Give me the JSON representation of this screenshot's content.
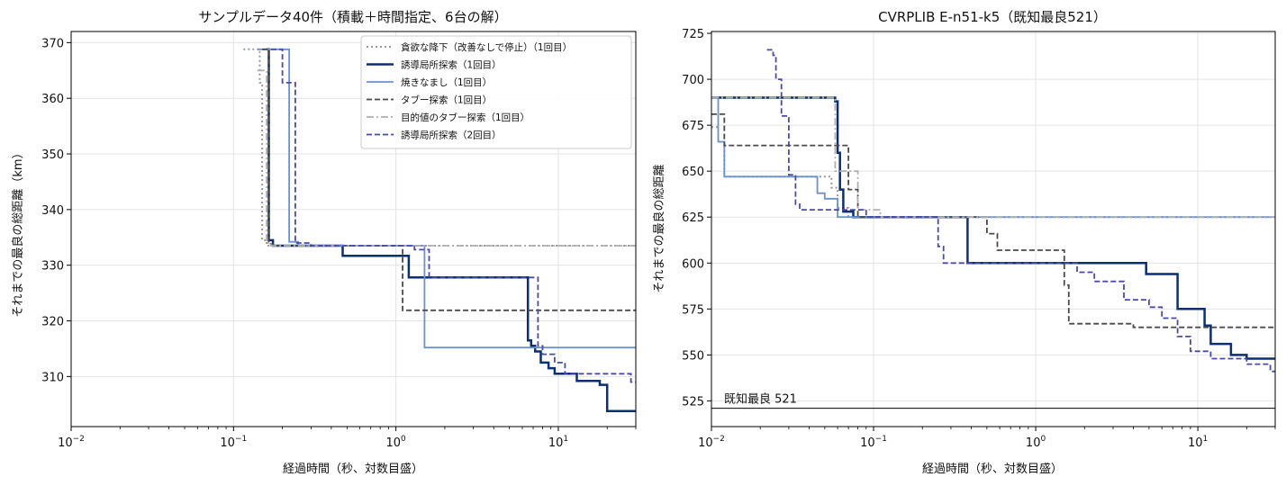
{
  "charts": [
    {
      "type": "line",
      "title": "サンプルデータ40件（積載＋時間指定、6台の解）",
      "xlabel": "経過時間（秒、対数目盛）",
      "ylabel": "それまでの最良の総距離（km）",
      "xscale": "log",
      "xlim": [
        0.01,
        30
      ],
      "ylim": [
        301,
        372
      ],
      "xticks": [
        0.01,
        0.1,
        1,
        10
      ],
      "xtick_labels": [
        [
          "10",
          "−2"
        ],
        [
          "10",
          "−1"
        ],
        [
          "10",
          "0"
        ],
        [
          "10",
          "1"
        ]
      ],
      "yticks": [
        310,
        320,
        330,
        340,
        350,
        360,
        370
      ],
      "grid": true,
      "legend": "top-right",
      "series": [
        {
          "name": "貪欲な降下（改善なしで停止）（1回目）",
          "color": "#999999",
          "style": "dotted",
          "width": 2,
          "points": [
            [
              0.115,
              368.8
            ],
            [
              0.145,
              368.8
            ],
            [
              0.145,
              362.8
            ],
            [
              0.15,
              362.8
            ],
            [
              0.15,
              334.5
            ],
            [
              0.16,
              334.5
            ],
            [
              0.16,
              333.5
            ],
            [
              30,
              333.5
            ]
          ]
        },
        {
          "name": "誘導局所探索（1回目）",
          "color": "#0b2f70",
          "style": "solid",
          "width": 2.5,
          "points": [
            [
              0.16,
              368.8
            ],
            [
              0.165,
              368.8
            ],
            [
              0.165,
              334.5
            ],
            [
              0.175,
              334.5
            ],
            [
              0.175,
              333.5
            ],
            [
              0.47,
              333.5
            ],
            [
              0.47,
              331.7
            ],
            [
              1.2,
              331.7
            ],
            [
              1.2,
              327.8
            ],
            [
              6.5,
              327.8
            ],
            [
              6.5,
              316.5
            ],
            [
              6.8,
              316.5
            ],
            [
              6.8,
              315.5
            ],
            [
              7.2,
              315.5
            ],
            [
              7.2,
              314.5
            ],
            [
              7.8,
              314.5
            ],
            [
              7.8,
              312.5
            ],
            [
              8.7,
              312.5
            ],
            [
              8.7,
              311.5
            ],
            [
              9.5,
              311.5
            ],
            [
              9.5,
              310.5
            ],
            [
              13,
              310.5
            ],
            [
              13,
              309.2
            ],
            [
              18,
              309.2
            ],
            [
              18,
              308.5
            ],
            [
              20,
              308.5
            ],
            [
              20,
              303.8
            ],
            [
              30,
              303.8
            ]
          ]
        },
        {
          "name": "焼きなまし（1回目）",
          "color": "#6a93cd",
          "style": "solid",
          "width": 1.8,
          "points": [
            [
              0.14,
              368.8
            ],
            [
              0.22,
              368.8
            ],
            [
              0.22,
              334.2
            ],
            [
              0.25,
              334.2
            ],
            [
              0.25,
              333.5
            ],
            [
              1.5,
              333.5
            ],
            [
              1.5,
              315.2
            ],
            [
              30,
              315.2
            ]
          ]
        },
        {
          "name": "タブー探索（1回目）",
          "color": "#4a4a4a",
          "style": "dashed",
          "width": 1.8,
          "points": [
            [
              0.15,
              368.8
            ],
            [
              0.165,
              368.8
            ],
            [
              0.165,
              333.8
            ],
            [
              0.175,
              333.8
            ],
            [
              0.175,
              333.5
            ],
            [
              1.1,
              333.5
            ],
            [
              1.1,
              321.9
            ],
            [
              30,
              321.9
            ]
          ]
        },
        {
          "name": "目的値のタブー探索（1回目）",
          "color": "#b0b0b0",
          "style": "dashdot",
          "width": 1.8,
          "points": [
            [
              0.14,
              365
            ],
            [
              0.16,
              365
            ],
            [
              0.16,
              334
            ],
            [
              0.17,
              334
            ],
            [
              0.17,
              333.5
            ],
            [
              30,
              333.5
            ]
          ]
        },
        {
          "name": "誘導局所探索（2回目）",
          "color": "#4a4aa8",
          "style": "dashed",
          "width": 1.8,
          "points": [
            [
              0.17,
              368.8
            ],
            [
              0.2,
              368.8
            ],
            [
              0.2,
              362.8
            ],
            [
              0.24,
              362.8
            ],
            [
              0.24,
              334
            ],
            [
              0.3,
              334
            ],
            [
              0.3,
              333.5
            ],
            [
              1.3,
              333.5
            ],
            [
              1.3,
              332.8
            ],
            [
              1.6,
              332.8
            ],
            [
              1.6,
              327.8
            ],
            [
              7.5,
              327.8
            ],
            [
              7.5,
              315.5
            ],
            [
              8,
              315.5
            ],
            [
              8,
              314
            ],
            [
              9.5,
              314
            ],
            [
              9.5,
              312.5
            ],
            [
              11,
              312.5
            ],
            [
              11,
              310.5
            ],
            [
              28,
              310.5
            ],
            [
              28,
              309
            ],
            [
              30,
              309
            ]
          ]
        }
      ]
    },
    {
      "type": "line",
      "title": "CVRPLIB E-n51-k5（既知最良521）",
      "xlabel": "経過時間（秒、対数目盛）",
      "ylabel": "それまでの最良の総距離",
      "xscale": "log",
      "xlim": [
        0.01,
        30
      ],
      "ylim": [
        511,
        726
      ],
      "xticks": [
        0.01,
        0.1,
        1,
        10
      ],
      "xtick_labels": [
        [
          "10",
          "−2"
        ],
        [
          "10",
          "−1"
        ],
        [
          "10",
          "0"
        ],
        [
          "10",
          "1"
        ]
      ],
      "yticks": [
        525,
        550,
        575,
        600,
        625,
        650,
        675,
        700,
        725
      ],
      "grid": true,
      "reference": {
        "value": 521,
        "label": "既知最良 521",
        "color": "#000000"
      },
      "series": [
        {
          "name": "貪欲な降下（改善なしで停止）（1回目）",
          "color": "#999999",
          "style": "dotted",
          "width": 2,
          "points": [
            [
              0.01,
              674
            ],
            [
              0.011,
              674
            ],
            [
              0.011,
              666
            ],
            [
              0.012,
              666
            ],
            [
              0.012,
              647
            ],
            [
              0.055,
              647
            ],
            [
              0.055,
              641
            ],
            [
              0.06,
              641
            ],
            [
              0.06,
              630
            ],
            [
              0.07,
              630
            ],
            [
              0.07,
              625
            ],
            [
              30,
              625
            ]
          ]
        },
        {
          "name": "誘導局所探索（1回目）",
          "color": "#0b2f70",
          "style": "solid",
          "width": 2.5,
          "points": [
            [
              0.01,
              690
            ],
            [
              0.058,
              690
            ],
            [
              0.058,
              688
            ],
            [
              0.06,
              688
            ],
            [
              0.06,
              660
            ],
            [
              0.062,
              660
            ],
            [
              0.062,
              640
            ],
            [
              0.065,
              640
            ],
            [
              0.065,
              628
            ],
            [
              0.075,
              628
            ],
            [
              0.075,
              625
            ],
            [
              0.38,
              625
            ],
            [
              0.38,
              600
            ],
            [
              4.8,
              600
            ],
            [
              4.8,
              594
            ],
            [
              7.5,
              594
            ],
            [
              7.5,
              575
            ],
            [
              11,
              575
            ],
            [
              11,
              566
            ],
            [
              12,
              566
            ],
            [
              12,
              556
            ],
            [
              16,
              556
            ],
            [
              16,
              550
            ],
            [
              20,
              550
            ],
            [
              20,
              548
            ],
            [
              30,
              548
            ]
          ]
        },
        {
          "name": "焼きなまし（1回目）",
          "color": "#6a93cd",
          "style": "solid",
          "width": 1.8,
          "points": [
            [
              0.01,
              690
            ],
            [
              0.011,
              690
            ],
            [
              0.011,
              666
            ],
            [
              0.012,
              666
            ],
            [
              0.012,
              647
            ],
            [
              0.045,
              647
            ],
            [
              0.045,
              638
            ],
            [
              0.05,
              638
            ],
            [
              0.05,
              635
            ],
            [
              0.06,
              635
            ],
            [
              0.06,
              625
            ],
            [
              30,
              625
            ]
          ]
        },
        {
          "name": "タブー探索（1回目）",
          "color": "#4a4a4a",
          "style": "dashed",
          "width": 1.8,
          "points": [
            [
              0.01,
              681
            ],
            [
              0.012,
              681
            ],
            [
              0.012,
              664
            ],
            [
              0.07,
              664
            ],
            [
              0.07,
              640
            ],
            [
              0.08,
              640
            ],
            [
              0.08,
              625
            ],
            [
              0.5,
              625
            ],
            [
              0.5,
              616
            ],
            [
              0.58,
              616
            ],
            [
              0.58,
              607
            ],
            [
              1.5,
              607
            ],
            [
              1.5,
              588
            ],
            [
              1.6,
              588
            ],
            [
              1.6,
              567
            ],
            [
              4,
              567
            ],
            [
              4,
              565
            ],
            [
              30,
              565
            ]
          ]
        },
        {
          "name": "目的値のタブー探索（1回目）",
          "color": "#b0b0b0",
          "style": "dashdot",
          "width": 1.8,
          "points": [
            [
              0.01,
              690
            ],
            [
              0.058,
              690
            ],
            [
              0.058,
              650
            ],
            [
              0.08,
              650
            ],
            [
              0.08,
              629
            ],
            [
              0.11,
              629
            ],
            [
              0.11,
              625
            ],
            [
              30,
              625
            ]
          ]
        },
        {
          "name": "誘導局所探索（2回目）",
          "color": "#4a4aa8",
          "style": "dashed",
          "width": 1.8,
          "points": [
            [
              0.022,
              716
            ],
            [
              0.024,
              716
            ],
            [
              0.024,
              713
            ],
            [
              0.025,
              713
            ],
            [
              0.025,
              700
            ],
            [
              0.027,
              700
            ],
            [
              0.027,
              680
            ],
            [
              0.03,
              680
            ],
            [
              0.03,
              648
            ],
            [
              0.033,
              648
            ],
            [
              0.033,
              632
            ],
            [
              0.035,
              632
            ],
            [
              0.035,
              629
            ],
            [
              0.09,
              629
            ],
            [
              0.09,
              625
            ],
            [
              0.25,
              625
            ],
            [
              0.25,
              609
            ],
            [
              0.27,
              609
            ],
            [
              0.27,
              600
            ],
            [
              1.8,
              600
            ],
            [
              1.8,
              595
            ],
            [
              2.3,
              595
            ],
            [
              2.3,
              590
            ],
            [
              3.5,
              590
            ],
            [
              3.5,
              580
            ],
            [
              5,
              580
            ],
            [
              5,
              576
            ],
            [
              6,
              576
            ],
            [
              6,
              570
            ],
            [
              7.5,
              570
            ],
            [
              7.5,
              560
            ],
            [
              9,
              560
            ],
            [
              9,
              552
            ],
            [
              12,
              552
            ],
            [
              12,
              548
            ],
            [
              20,
              548
            ],
            [
              20,
              545
            ],
            [
              28,
              545
            ],
            [
              28,
              541
            ],
            [
              30,
              541
            ]
          ]
        }
      ]
    }
  ]
}
